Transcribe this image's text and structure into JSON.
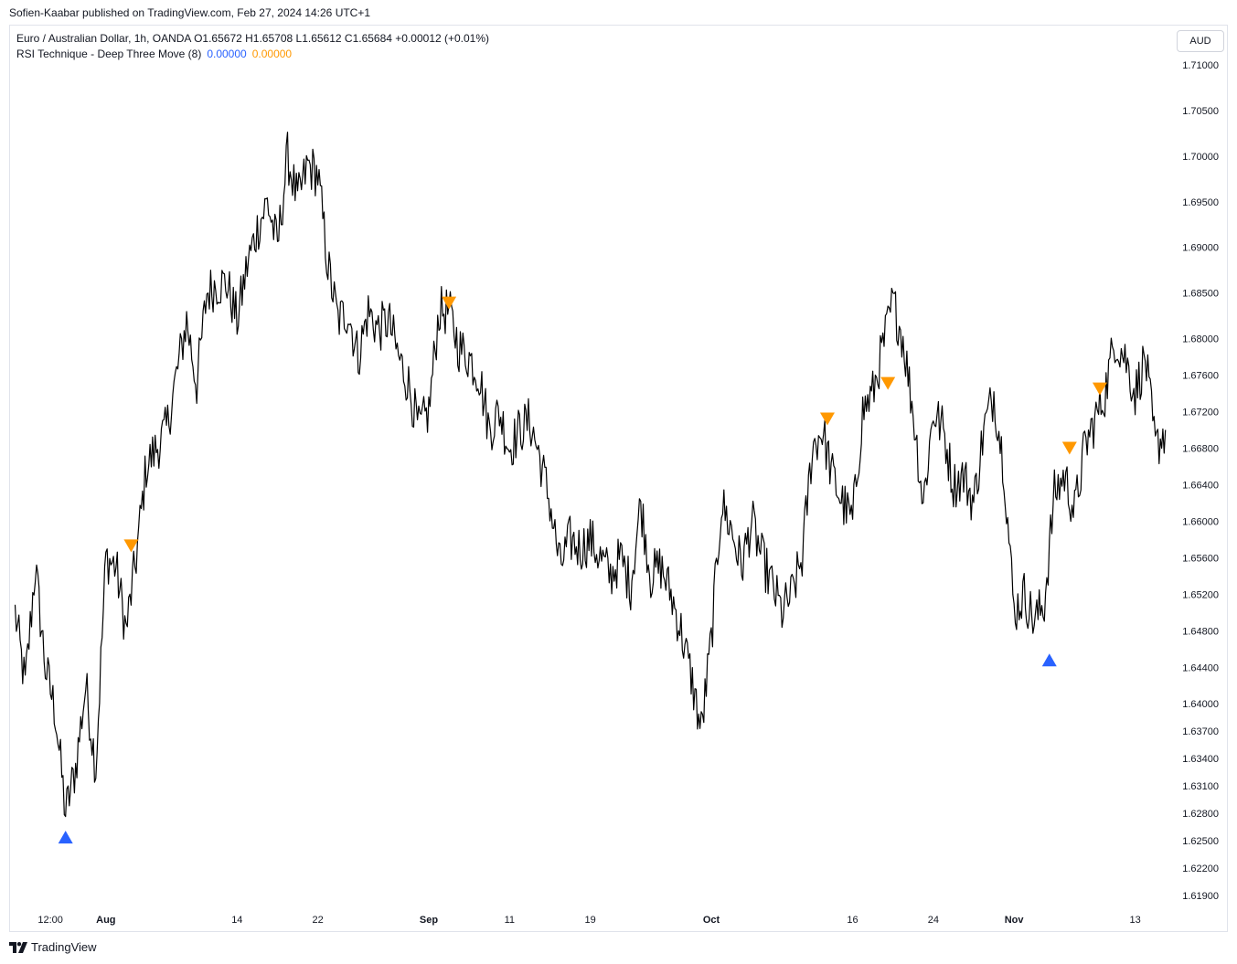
{
  "header": {
    "publish_line": "Sofien-Kaabar published on TradingView.com, Feb 27, 2024 14:26 UTC+1"
  },
  "legend": {
    "symbol_line": "Euro / Australian Dollar, 1h, OANDA  O1.65672  H1.65708  L1.65612  C1.65684  +0.00012 (+0.01%)",
    "indicator_name": "RSI Technique - Deep Three Move (8)",
    "indicator_value_1": "0.00000",
    "indicator_value_2": "0.00000"
  },
  "currency_button": "AUD",
  "footer": {
    "brand": "TradingView"
  },
  "colors": {
    "price_line": "#000000",
    "bullish_signal": "#2962ff",
    "bearish_signal": "#ff9800",
    "indicator_value_1": "#2962ff",
    "indicator_value_2": "#ff9800"
  },
  "chart_data": {
    "type": "line",
    "title": "Euro / Australian Dollar, 1h, OANDA",
    "ylim": [
      1.6175,
      1.7143
    ],
    "y_ticks": [
      "1.71000",
      "1.70500",
      "1.70000",
      "1.69500",
      "1.69000",
      "1.68500",
      "1.68000",
      "1.67600",
      "1.67200",
      "1.66800",
      "1.66400",
      "1.66000",
      "1.65600",
      "1.65200",
      "1.64800",
      "1.64400",
      "1.64000",
      "1.63700",
      "1.63400",
      "1.63100",
      "1.62800",
      "1.62500",
      "1.62200",
      "1.61900"
    ],
    "x_ticks": [
      {
        "label": "12:00",
        "t": 3.5,
        "bold": false
      },
      {
        "label": "Aug",
        "t": 9,
        "bold": true
      },
      {
        "label": "14",
        "t": 22,
        "bold": false
      },
      {
        "label": "22",
        "t": 30,
        "bold": false
      },
      {
        "label": "Sep",
        "t": 41,
        "bold": true
      },
      {
        "label": "11",
        "t": 49,
        "bold": false
      },
      {
        "label": "19",
        "t": 57,
        "bold": false
      },
      {
        "label": "Oct",
        "t": 69,
        "bold": true
      },
      {
        "label": "16",
        "t": 83,
        "bold": false
      },
      {
        "label": "24",
        "t": 91,
        "bold": false
      },
      {
        "label": "Nov",
        "t": 99,
        "bold": true
      },
      {
        "label": "13",
        "t": 111,
        "bold": false
      }
    ],
    "t_range": [
      -0.5,
      114.3
    ],
    "series": [
      {
        "x": [
          0,
          1,
          2,
          3,
          4,
          5,
          6,
          7,
          8,
          9,
          10,
          11,
          12,
          13,
          14,
          15,
          16,
          17,
          18,
          19,
          20,
          21,
          22,
          23,
          24,
          25,
          26,
          27,
          28,
          29,
          30,
          31,
          32,
          33,
          34,
          35,
          36,
          37,
          38,
          39,
          40,
          41,
          42,
          43,
          44,
          45,
          46,
          47,
          48,
          49,
          50,
          51,
          52,
          53,
          54,
          55,
          56,
          57,
          58,
          59,
          60,
          61,
          62,
          63,
          64,
          65,
          66,
          67,
          68,
          69,
          70,
          71,
          72,
          73,
          74,
          75,
          76,
          77,
          78,
          79,
          80,
          81,
          82,
          83,
          84,
          85,
          86,
          87,
          88,
          89,
          90,
          91,
          92,
          93,
          94,
          95,
          96,
          97,
          98,
          99,
          100,
          101,
          102,
          103,
          104,
          105,
          106,
          107,
          108,
          109,
          110,
          111,
          112,
          113,
          114
        ],
        "values": [
          1.65,
          1.642,
          1.655,
          1.644,
          1.639,
          1.628,
          1.633,
          1.642,
          1.633,
          1.656,
          1.655,
          1.648,
          1.656,
          1.666,
          1.668,
          1.67,
          1.676,
          1.682,
          1.675,
          1.685,
          1.686,
          1.686,
          1.682,
          1.688,
          1.692,
          1.695,
          1.69,
          1.7,
          1.695,
          1.699,
          1.698,
          1.688,
          1.682,
          1.683,
          1.678,
          1.683,
          1.681,
          1.682,
          1.678,
          1.675,
          1.67,
          1.672,
          1.683,
          1.683,
          1.679,
          1.678,
          1.676,
          1.67,
          1.672,
          1.668,
          1.67,
          1.671,
          1.667,
          1.662,
          1.655,
          1.658,
          1.657,
          1.658,
          1.656,
          1.654,
          1.656,
          1.653,
          1.662,
          1.654,
          1.655,
          1.652,
          1.648,
          1.643,
          1.637,
          1.647,
          1.662,
          1.659,
          1.655,
          1.66,
          1.656,
          1.653,
          1.65,
          1.652,
          1.656,
          1.668,
          1.67,
          1.665,
          1.662,
          1.66,
          1.672,
          1.674,
          1.679,
          1.684,
          1.68,
          1.672,
          1.662,
          1.672,
          1.67,
          1.664,
          1.665,
          1.662,
          1.67,
          1.674,
          1.666,
          1.65,
          1.652,
          1.649,
          1.651,
          1.663,
          1.665,
          1.661,
          1.668,
          1.671,
          1.674,
          1.68,
          1.678,
          1.674,
          1.678,
          1.668,
          1.67
        ]
      }
    ],
    "signals": {
      "bullish_up_triangles": [
        {
          "t": 5,
          "y": 1.6253
        },
        {
          "t": 102.5,
          "y": 1.6447
        }
      ],
      "bearish_down_triangles": [
        {
          "t": 11.5,
          "y": 1.6574
        },
        {
          "t": 43,
          "y": 1.684
        },
        {
          "t": 80.5,
          "y": 1.6713
        },
        {
          "t": 86.5,
          "y": 1.6752
        },
        {
          "t": 104.5,
          "y": 1.6681
        },
        {
          "t": 107.5,
          "y": 1.6746
        }
      ]
    }
  }
}
